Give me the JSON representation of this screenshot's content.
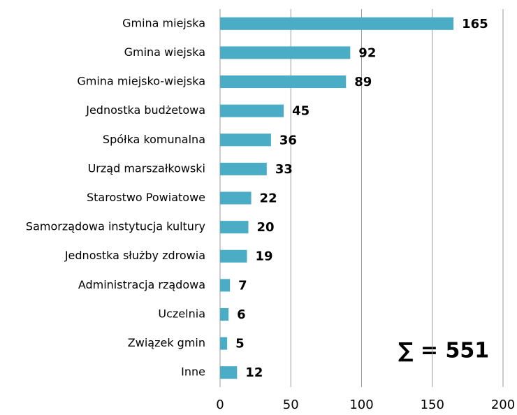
{
  "chart_data": {
    "type": "barh",
    "categories": [
      "Gmina miejska",
      "Gmina wiejska",
      "Gmina miejsko-wiejska",
      "Jednostka budżetowa",
      "Spółka komunalna",
      "Urząd marszałkowski",
      "Starostwo Powiatowe",
      "Samorządowa instytucja kultury",
      "Jednostka służby zdrowia",
      "Administracja rządowa",
      "Uczelnia",
      "Związek gmin",
      "Inne"
    ],
    "values": [
      165,
      92,
      89,
      45,
      36,
      33,
      22,
      20,
      19,
      7,
      6,
      5,
      12
    ],
    "color": "#4bacc6",
    "xlim": [
      0,
      200
    ],
    "xticks": [
      0,
      50,
      100,
      150,
      200
    ],
    "grid": true,
    "annotation": "∑ = 551"
  }
}
